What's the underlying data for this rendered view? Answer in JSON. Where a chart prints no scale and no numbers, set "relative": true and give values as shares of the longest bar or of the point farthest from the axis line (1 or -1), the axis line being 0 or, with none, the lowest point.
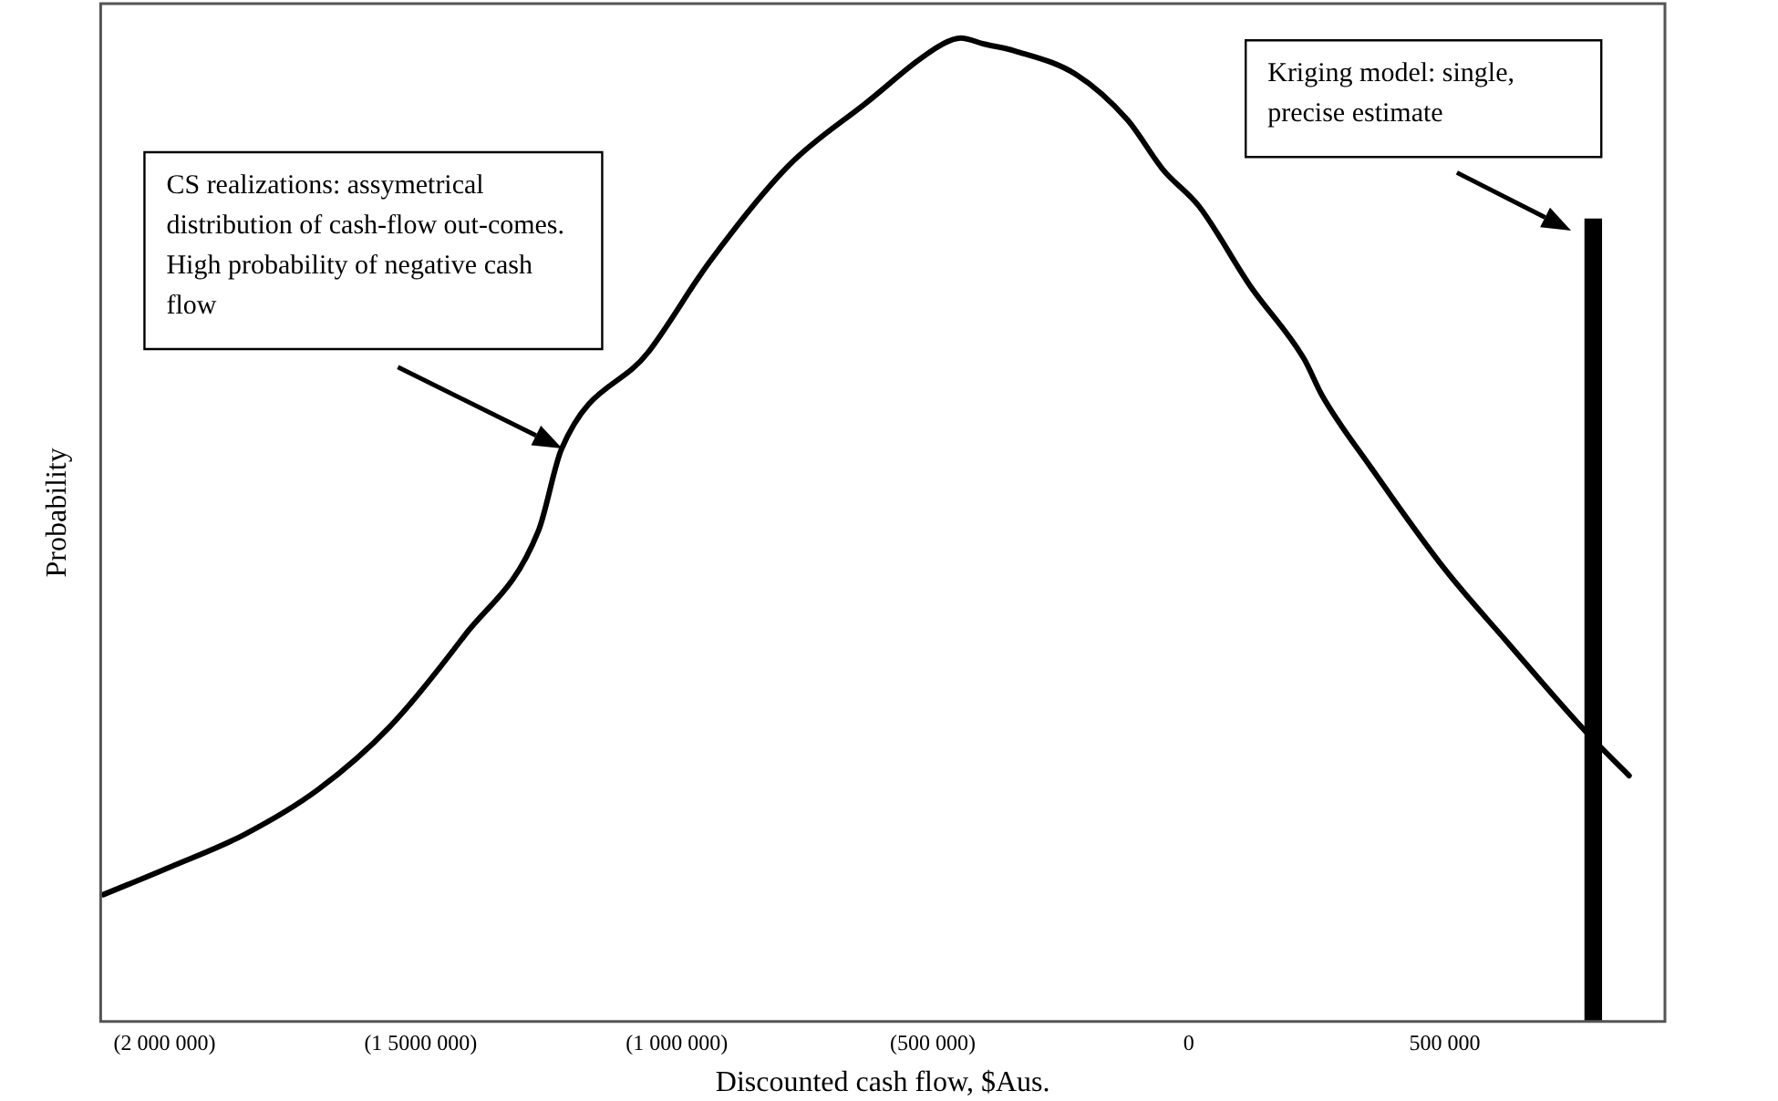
{
  "chart_data": {
    "type": "line",
    "xlabel": "Discounted cash flow, $Aus.",
    "ylabel": "Probability",
    "relative": true,
    "xlim": [
      -2125000,
      930000
    ],
    "xticks": [
      {
        "value": -2000000,
        "label": "(2 000 000)"
      },
      {
        "value": -1500000,
        "label": "(1 5000 000)"
      },
      {
        "value": -1000000,
        "label": "(1 000 000)"
      },
      {
        "value": -500000,
        "label": "(500 000)"
      },
      0,
      {
        "value": 500000,
        "label": "500 000"
      }
    ],
    "series": [
      {
        "color": "#000000",
        "x": [
          -2120000,
          -1990000,
          -1845000,
          -1700000,
          -1560000,
          -1415000,
          -1270000,
          -1225000,
          -1055000,
          -935000,
          -780000,
          -635000,
          -480000,
          -445000,
          -400000,
          -340000,
          -220000,
          -120000,
          -50000,
          20000,
          120000,
          225000,
          260000,
          355000,
          500000,
          620000,
          775000,
          860000
        ],
        "values": [
          0.129,
          0.157,
          0.19,
          0.236,
          0.3,
          0.392,
          0.499,
          0.582,
          0.681,
          0.773,
          0.871,
          0.932,
          0.994,
          1.0,
          0.994,
          0.987,
          0.963,
          0.917,
          0.866,
          0.829,
          0.748,
          0.674,
          0.637,
          0.564,
          0.46,
          0.387,
          0.295,
          0.25
        ]
      },
      {
        "type": "bar",
        "color": "#000000",
        "x": [
          790000
        ],
        "values": [
          0.816
        ]
      }
    ],
    "annotations": [
      "CS realizations: assymetrical distribution of cash-flow out-comes. High probability of negative cash flow",
      "Kriging model: single, precise estimate"
    ]
  }
}
